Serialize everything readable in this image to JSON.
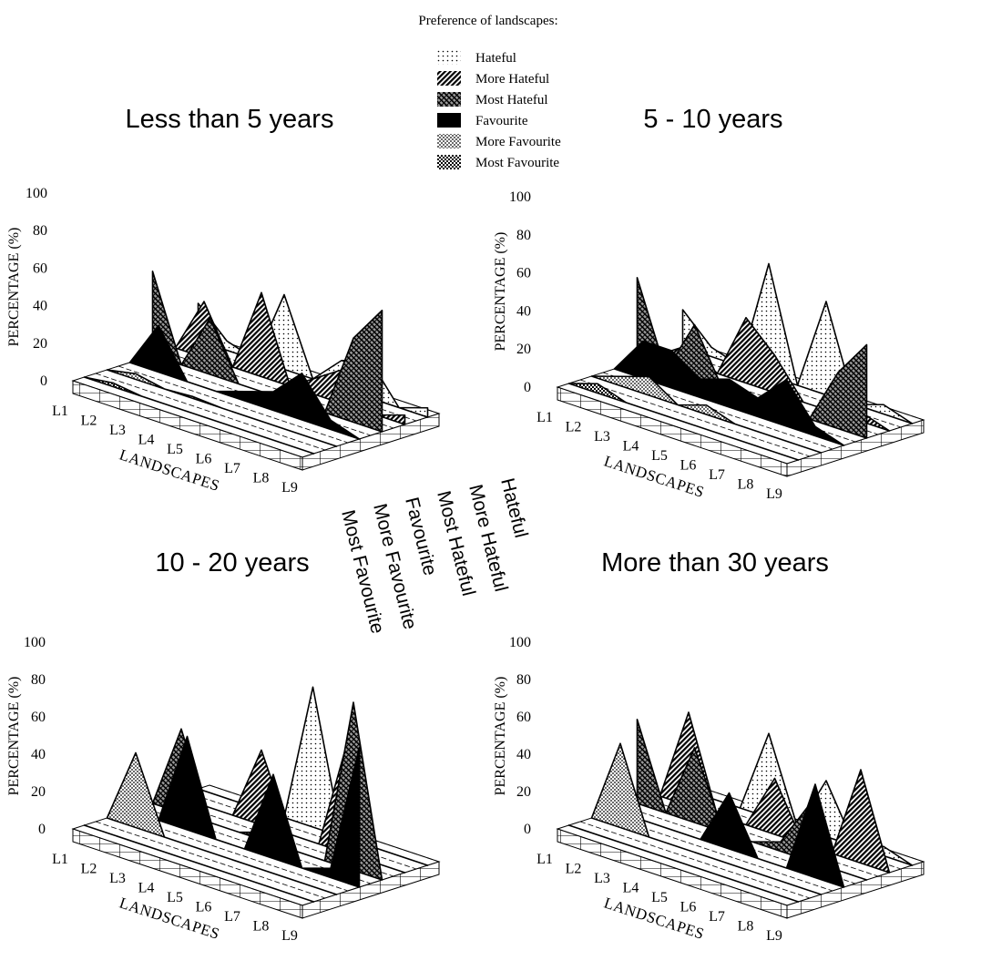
{
  "legend": {
    "title": "Preference of landscapes:",
    "items": [
      {
        "label": "Hateful",
        "pattern": "dots-light"
      },
      {
        "label": "More Hateful",
        "pattern": "hatch-dense"
      },
      {
        "label": "Most Hateful",
        "pattern": "hatch-cross"
      },
      {
        "label": "Favourite",
        "pattern": "solid-black"
      },
      {
        "label": "More Favourite",
        "pattern": "dots-medium"
      },
      {
        "label": "Most Favourite",
        "pattern": "checker"
      }
    ]
  },
  "colors": {
    "ink": "#000000",
    "paper": "#ffffff"
  },
  "chart_data": [
    {
      "type": "area",
      "title": "Less than 5 years",
      "ylabel": "PERCENTAGE (%)",
      "xlabel": "LANDSCAPES",
      "yticks": [
        "100",
        "80",
        "60",
        "40",
        "20",
        "0"
      ],
      "ylim": [
        0,
        100
      ],
      "categories": [
        "L1",
        "L2",
        "L3",
        "L4",
        "L5",
        "L6",
        "L7",
        "L8",
        "L9"
      ],
      "series": [
        {
          "name": "Most Favourite",
          "values": [
            0,
            2,
            0,
            0,
            0,
            0,
            0,
            0,
            0
          ]
        },
        {
          "name": "More Favourite",
          "values": [
            0,
            3,
            0,
            1,
            0,
            0,
            0,
            0,
            0
          ]
        },
        {
          "name": "Favourite",
          "values": [
            0,
            25,
            0,
            0,
            5,
            10,
            25,
            5,
            0
          ]
        },
        {
          "name": "Most Hateful",
          "values": [
            45,
            0,
            30,
            0,
            0,
            5,
            0,
            45,
            65
          ]
        },
        {
          "name": "More Hateful",
          "values": [
            0,
            30,
            0,
            45,
            0,
            10,
            20,
            0,
            5
          ]
        },
        {
          "name": "Hateful",
          "values": [
            20,
            5,
            0,
            40,
            0,
            15,
            20,
            0,
            5
          ]
        }
      ]
    },
    {
      "type": "area",
      "title": "5 - 10 years",
      "ylabel": "PERCENTAGE (%)",
      "xlabel": "LANDSCAPES",
      "yticks": [
        "100",
        "80",
        "60",
        "40",
        "20",
        "0"
      ],
      "ylim": [
        0,
        100
      ],
      "categories": [
        "L1",
        "L2",
        "L3",
        "L4",
        "L5",
        "L6",
        "L7",
        "L8",
        "L9"
      ],
      "series": [
        {
          "name": "Most Favourite",
          "values": [
            0,
            5,
            0,
            0,
            0,
            0,
            0,
            0,
            0
          ]
        },
        {
          "name": "More Favourite",
          "values": [
            0,
            5,
            10,
            0,
            5,
            0,
            0,
            0,
            0
          ]
        },
        {
          "name": "Favourite",
          "values": [
            0,
            20,
            20,
            10,
            15,
            10,
            25,
            5,
            0
          ]
        },
        {
          "name": "Most Hateful",
          "values": [
            45,
            0,
            30,
            0,
            0,
            10,
            0,
            30,
            50
          ]
        },
        {
          "name": "More Hateful",
          "values": [
            0,
            10,
            0,
            35,
            20,
            0,
            0,
            5,
            0
          ]
        },
        {
          "name": "Hateful",
          "values": [
            20,
            5,
            0,
            60,
            0,
            50,
            0,
            5,
            0
          ]
        }
      ]
    },
    {
      "type": "area",
      "title": "10 - 20 years",
      "ylabel": "PERCENTAGE (%)",
      "xlabel": "LANDSCAPES",
      "yticks": [
        "100",
        "80",
        "60",
        "40",
        "20",
        "0"
      ],
      "ylim": [
        0,
        100
      ],
      "categories": [
        "L1",
        "L2",
        "L3",
        "L4",
        "L5",
        "L6",
        "L7",
        "L8",
        "L9"
      ],
      "series": [
        {
          "name": "Most Favourite",
          "values": [
            0,
            0,
            0,
            0,
            0,
            0,
            0,
            0,
            0
          ]
        },
        {
          "name": "More Favourite",
          "values": [
            0,
            40,
            0,
            0,
            0,
            0,
            0,
            0,
            0
          ]
        },
        {
          "name": "Favourite",
          "values": [
            0,
            0,
            50,
            0,
            0,
            45,
            0,
            5,
            75
          ]
        },
        {
          "name": "Most Hateful",
          "values": [
            0,
            45,
            0,
            0,
            5,
            0,
            0,
            90,
            0
          ]
        },
        {
          "name": "More Hateful",
          "values": [
            0,
            0,
            0,
            40,
            0,
            0,
            60,
            0,
            0
          ]
        },
        {
          "name": "Hateful",
          "values": [
            0,
            0,
            0,
            0,
            75,
            0,
            0,
            0,
            0
          ]
        }
      ]
    },
    {
      "type": "area",
      "title": "More than 30 years",
      "ylabel": "PERCENTAGE (%)",
      "xlabel": "LANDSCAPES",
      "yticks": [
        "100",
        "80",
        "60",
        "40",
        "20",
        "0"
      ],
      "ylim": [
        0,
        100
      ],
      "categories": [
        "L1",
        "L2",
        "L3",
        "L4",
        "L5",
        "L6",
        "L7",
        "L8",
        "L9"
      ],
      "series": [
        {
          "name": "Most Favourite",
          "values": [
            0,
            0,
            0,
            0,
            0,
            0,
            0,
            0,
            0
          ]
        },
        {
          "name": "More Favourite",
          "values": [
            0,
            45,
            0,
            0,
            0,
            0,
            0,
            0,
            0
          ]
        },
        {
          "name": "Favourite",
          "values": [
            0,
            0,
            0,
            0,
            30,
            0,
            0,
            50,
            0
          ]
        },
        {
          "name": "Most Hateful",
          "values": [
            45,
            0,
            40,
            0,
            0,
            5,
            30,
            0,
            0
          ]
        },
        {
          "name": "More Hateful",
          "values": [
            0,
            50,
            0,
            0,
            30,
            0,
            0,
            50,
            0
          ]
        },
        {
          "name": "Hateful",
          "values": [
            0,
            0,
            0,
            45,
            0,
            30,
            0,
            5,
            0
          ]
        }
      ]
    }
  ]
}
